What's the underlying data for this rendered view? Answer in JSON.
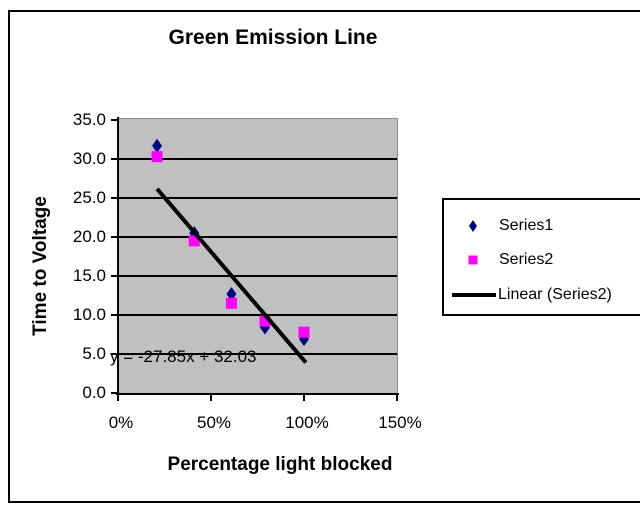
{
  "chart_data": {
    "type": "scatter",
    "title": "Green Emission Line",
    "xlabel": "Percentage light blocked",
    "ylabel": "Time to Voltage",
    "plot_bg_color": "#c0c0c0",
    "grid": "horizontal-major",
    "legend_position": "right",
    "x_axis": {
      "range": [
        0,
        1.5
      ],
      "ticks": [
        {
          "value": 0.0,
          "label": "0%"
        },
        {
          "value": 0.5,
          "label": "50%"
        },
        {
          "value": 1.0,
          "label": "100%"
        },
        {
          "value": 1.5,
          "label": "150%"
        }
      ]
    },
    "y_axis": {
      "range": [
        0,
        35
      ],
      "ticks": [
        {
          "value": 35,
          "label": "35.0"
        },
        {
          "value": 30,
          "label": "30.0"
        },
        {
          "value": 25,
          "label": "25.0"
        },
        {
          "value": 20,
          "label": "20.0"
        },
        {
          "value": 15,
          "label": "15.0"
        },
        {
          "value": 10,
          "label": "10.0"
        },
        {
          "value": 5,
          "label": "5.0"
        },
        {
          "value": 0,
          "label": "0.0"
        }
      ]
    },
    "series": [
      {
        "name": "Series1",
        "marker": "diamond",
        "color": "#000080",
        "points": [
          {
            "x": 0.21,
            "y": 31.7
          },
          {
            "x": 0.41,
            "y": 20.5
          },
          {
            "x": 0.61,
            "y": 12.7
          },
          {
            "x": 0.79,
            "y": 8.4
          },
          {
            "x": 1.0,
            "y": 6.9
          }
        ]
      },
      {
        "name": "Series2",
        "marker": "square",
        "color": "#ff00ff",
        "points": [
          {
            "x": 0.21,
            "y": 30.3
          },
          {
            "x": 0.41,
            "y": 19.5
          },
          {
            "x": 0.61,
            "y": 11.5
          },
          {
            "x": 0.79,
            "y": 9.2
          },
          {
            "x": 1.0,
            "y": 7.8
          }
        ]
      }
    ],
    "trendline": {
      "name": "Linear (Series2)",
      "of_series": "Series2",
      "equation": "y = -27.85x + 32.03",
      "slope": -27.85,
      "intercept": 32.03,
      "x_range": [
        0.21,
        1.01
      ],
      "color": "#000000"
    }
  }
}
